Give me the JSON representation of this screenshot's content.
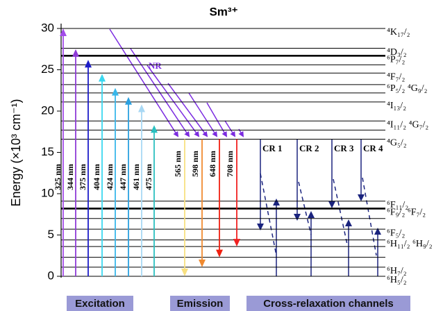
{
  "chart_data": {
    "type": "energy-levels",
    "title": "Sm³⁺",
    "ylabel": "Energy (×10³ cm⁻¹)",
    "ylim": [
      0,
      30
    ],
    "yticks": [
      0,
      5,
      10,
      15,
      20,
      25,
      30
    ],
    "levels": [
      {
        "energy": 30,
        "label": "⁴K₁₇/₂"
      },
      {
        "energy": 27.6,
        "label": "⁴D₃/₂"
      },
      {
        "energy": 26.7,
        "label": "⁶P₇/₂",
        "bold": true
      },
      {
        "energy": 25.6,
        "label": null
      },
      {
        "energy": 24.6,
        "label": "⁴F₇/₂"
      },
      {
        "energy": 23.2,
        "label": "⁶P₅/₂ ⁴G₉/₂"
      },
      {
        "energy": 22.2,
        "label": null
      },
      {
        "energy": 21.1,
        "label": "⁴I₁₃/₂"
      },
      {
        "energy": 18.8,
        "label": "⁴I₁₁/₂ ⁴G₇/₂"
      },
      {
        "energy": 17.7,
        "label": null
      },
      {
        "energy": 16.6,
        "label": "⁴G₅/₂"
      },
      {
        "energy": 9.1,
        "label": "⁶F₁₁/₂"
      },
      {
        "energy": 8.2,
        "label": "⁶F₉/₂ ⁶F₇/₂",
        "bold": true
      },
      {
        "energy": 7.0,
        "label": null
      },
      {
        "energy": 5.7,
        "label": "⁶F₅/₂"
      },
      {
        "energy": 4.4,
        "label": "⁶H₁₁/₂ ⁶H₉/₂"
      },
      {
        "energy": 3.6,
        "label": null
      },
      {
        "energy": 2.3,
        "label": null
      },
      {
        "energy": 1.1,
        "label": "⁶H₇/₂"
      },
      {
        "energy": 0,
        "label": "⁶H₅/₂"
      }
    ],
    "excitation": {
      "labels": [
        "325 nm",
        "344 nm",
        "375 nm",
        "404 nm",
        "424 nm",
        "447 nm",
        "461 nm",
        "475 nm"
      ],
      "values": [
        30,
        27.5,
        26.2,
        24.5,
        22.8,
        21.7,
        20.8,
        18.3
      ],
      "colors": [
        "#a24be8",
        "#8e3ad6",
        "#1c1cc8",
        "#3ad8f0",
        "#38b7ea",
        "#2aa0e0",
        "#a8d8f4",
        "#2ac0c0"
      ]
    },
    "emission": {
      "from": 16.6,
      "labels": [
        "565 nm",
        "598 nm",
        "648 nm",
        "708 nm"
      ],
      "values": [
        0,
        1.1,
        2.3,
        3.6
      ],
      "colors": [
        "#f8e080",
        "#f08a30",
        "#f02010",
        "#f02020"
      ]
    },
    "annotations": {
      "nr": "NR",
      "cr": [
        "CR 1",
        "CR 2",
        "CR 3",
        "CR 4"
      ]
    },
    "sections": [
      "Excitation",
      "Emission",
      "Cross-relaxation channels"
    ]
  }
}
